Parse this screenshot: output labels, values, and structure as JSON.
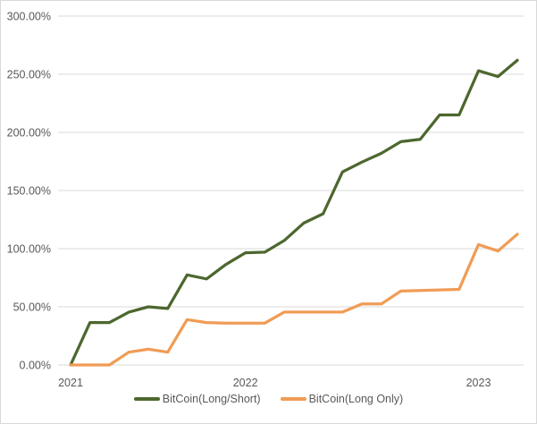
{
  "chart_data": {
    "type": "line",
    "title": "",
    "xlabel": "",
    "ylabel": "",
    "x_axis": {
      "tick_labels": [
        "2021",
        "2022",
        "2023"
      ],
      "tick_point_indices": [
        0,
        9,
        21
      ],
      "points_per_series": 24
    },
    "y_axis": {
      "tick_labels": [
        "0.00%",
        "50.00%",
        "100.00%",
        "150.00%",
        "200.00%",
        "250.00%",
        "300.00%"
      ],
      "tick_values": [
        0,
        50,
        100,
        150,
        200,
        250,
        300
      ],
      "min": 0,
      "max": 300,
      "unit": "percent"
    },
    "grid": "horizontal",
    "legend_position": "bottom-center",
    "series": [
      {
        "name": "BitCoin(Long/Short)",
        "color": "#4D672E",
        "values": [
          0,
          36.5,
          36.5,
          45.5,
          50,
          48.5,
          77.5,
          74,
          86.5,
          96.5,
          97,
          107,
          122,
          130,
          166,
          174.5,
          182,
          192,
          194,
          215,
          215,
          253,
          248,
          262
        ]
      },
      {
        "name": "BitCoin(Long Only)",
        "color": "#F09C55",
        "values": [
          0,
          0,
          0,
          11,
          13.5,
          11,
          39,
          36.5,
          36,
          36,
          36,
          45.5,
          45.5,
          45.5,
          45.5,
          52.5,
          52.5,
          63.5,
          64,
          64.5,
          65,
          103.5,
          98,
          112.5
        ]
      }
    ]
  },
  "colors": {
    "gridline": "#D9D9D9",
    "axis_text": "#595959",
    "background": "#FFFFFF",
    "frame_border": "#D9D9D9"
  }
}
